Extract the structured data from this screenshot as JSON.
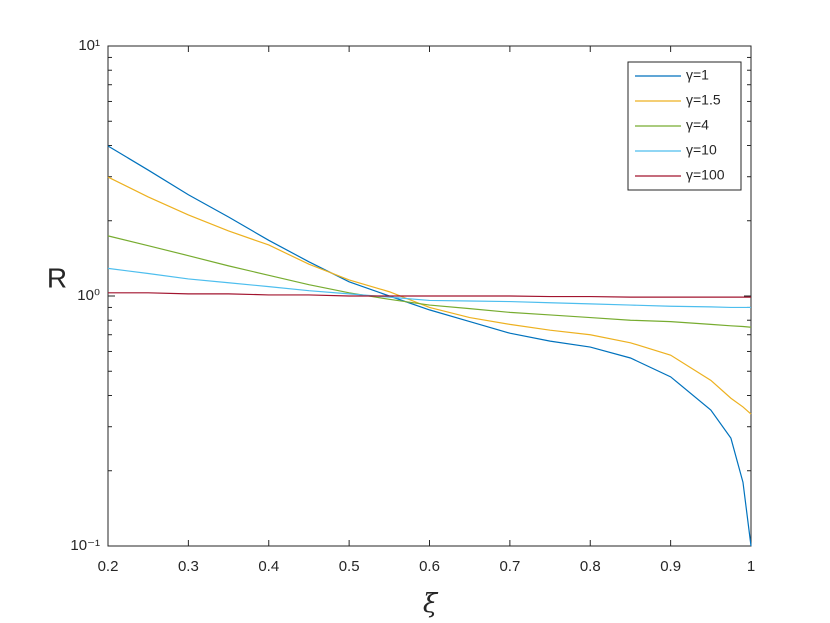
{
  "chart_data": {
    "type": "line",
    "xlabel": "ξ",
    "ylabel": "R",
    "x": [
      0.2,
      0.25,
      0.3,
      0.35,
      0.4,
      0.45,
      0.5,
      0.55,
      0.6,
      0.65,
      0.7,
      0.75,
      0.8,
      0.85,
      0.9,
      0.95,
      0.975,
      0.99,
      1
    ],
    "series": [
      {
        "name": "γ=1",
        "color": "#0072bd",
        "values": [
          3.98,
          3.19,
          2.54,
          2.07,
          1.67,
          1.37,
          1.14,
          1.0,
          0.88,
          0.79,
          0.71,
          0.66,
          0.625,
          0.565,
          0.475,
          0.35,
          0.27,
          0.18,
          0.1
        ]
      },
      {
        "name": "γ=1.5",
        "color": "#edb120",
        "values": [
          2.99,
          2.49,
          2.11,
          1.82,
          1.6,
          1.34,
          1.16,
          1.04,
          0.9,
          0.82,
          0.77,
          0.73,
          0.7,
          0.65,
          0.58,
          0.46,
          0.39,
          0.36,
          0.337
        ]
      },
      {
        "name": "γ=4",
        "color": "#77ac30",
        "values": [
          1.74,
          1.59,
          1.45,
          1.32,
          1.21,
          1.11,
          1.03,
          0.97,
          0.92,
          0.89,
          0.86,
          0.84,
          0.82,
          0.8,
          0.79,
          0.77,
          0.76,
          0.755,
          0.75
        ]
      },
      {
        "name": "γ=10",
        "color": "#4dbeee",
        "values": [
          1.29,
          1.23,
          1.17,
          1.13,
          1.09,
          1.05,
          1.02,
          0.99,
          0.96,
          0.955,
          0.95,
          0.94,
          0.93,
          0.92,
          0.91,
          0.905,
          0.9,
          0.9,
          0.9
        ]
      },
      {
        "name": "γ=100",
        "color": "#a2142f",
        "values": [
          1.03,
          1.03,
          1.02,
          1.02,
          1.01,
          1.01,
          1.0,
          1.0,
          1.0,
          1.0,
          1.0,
          0.995,
          0.995,
          0.99,
          0.99,
          0.99,
          0.99,
          0.99,
          0.99
        ]
      }
    ],
    "xlim": [
      0.2,
      1
    ],
    "xticks": [
      0.2,
      0.3,
      0.4,
      0.5,
      0.6,
      0.7,
      0.8,
      0.9,
      1
    ],
    "ylim": [
      0.1,
      10
    ],
    "ylog": true,
    "yticks": [
      {
        "value": 0.1,
        "label": "10⁻¹"
      },
      {
        "value": 1,
        "label": "10⁰"
      },
      {
        "value": 10,
        "label": "10¹"
      }
    ],
    "yminorticks": [
      0.2,
      0.3,
      0.4,
      0.5,
      0.6,
      0.7,
      0.8,
      0.9,
      2,
      3,
      4,
      5,
      6,
      7,
      8,
      9
    ],
    "grid": false,
    "legend": "northeast"
  }
}
